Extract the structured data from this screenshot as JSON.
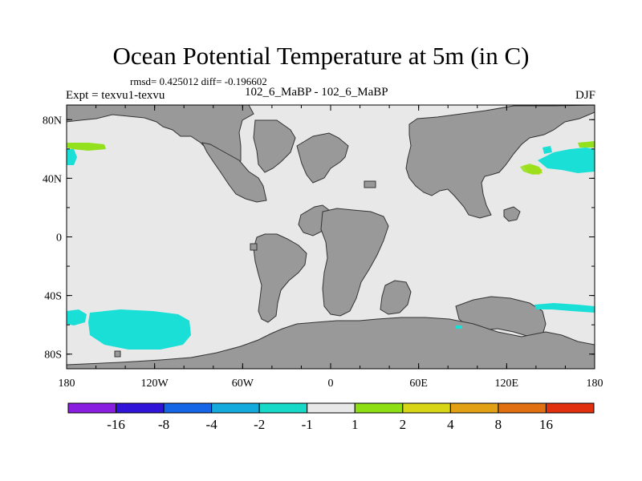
{
  "header": {
    "title": "Ocean Potential Temperature at 5m (in C)",
    "stats": "rmsd= 0.425012 diff= -0.196602",
    "experiment": "Expt = texvu1-texvu",
    "subtitle": "102_6_MaBP - 102_6_MaBP",
    "season": "DJF"
  },
  "map": {
    "land_color": "#999999",
    "ocean_color": "#e8e8e8",
    "x_tick_labels": [
      "180",
      "120W",
      "60W",
      "0",
      "60E",
      "120E",
      "180"
    ],
    "y_tick_labels": [
      "80N",
      "40N",
      "0",
      "40S",
      "80S"
    ],
    "anomaly_colors": {
      "minus_2_to_minus_1": "#19dfd6",
      "1_to_2": "#93e01c",
      "2_to_4": "#d7d612"
    }
  },
  "colorbar": {
    "colors": [
      "#8a1ee0",
      "#3014d8",
      "#1466e6",
      "#14aade",
      "#18d8c8",
      "#e8e8e8",
      "#8ede14",
      "#d8d416",
      "#e2a014",
      "#e07010",
      "#e0300e"
    ],
    "labels": [
      "-16",
      "-8",
      "-4",
      "-2",
      "-1",
      "1",
      "2",
      "4",
      "8",
      "16"
    ]
  }
}
